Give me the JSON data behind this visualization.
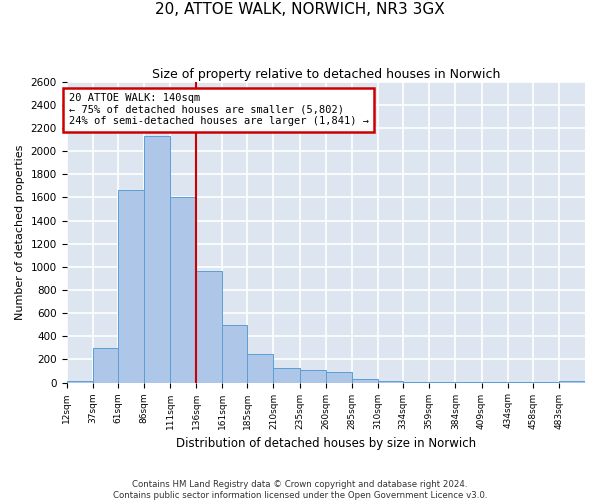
{
  "title": "20, ATTOE WALK, NORWICH, NR3 3GX",
  "subtitle": "Size of property relative to detached houses in Norwich",
  "xlabel": "Distribution of detached houses by size in Norwich",
  "ylabel": "Number of detached properties",
  "footnote1": "Contains HM Land Registry data © Crown copyright and database right 2024.",
  "footnote2": "Contains public sector information licensed under the Open Government Licence v3.0.",
  "bar_color": "#aec6e8",
  "bar_edge_color": "#5a9fd4",
  "bg_color": "#dde6f0",
  "grid_color": "#ffffff",
  "vline_x": 136,
  "vline_color": "#cc0000",
  "annotation_line1": "20 ATTOE WALK: 140sqm",
  "annotation_line2": "← 75% of detached houses are smaller (5,802)",
  "annotation_line3": "24% of semi-detached houses are larger (1,841) →",
  "annotation_box_color": "#cc0000",
  "ylim": [
    0,
    2600
  ],
  "yticks": [
    0,
    200,
    400,
    600,
    800,
    1000,
    1200,
    1400,
    1600,
    1800,
    2000,
    2200,
    2400,
    2600
  ],
  "bin_edges": [
    12,
    37,
    61,
    86,
    111,
    136,
    161,
    185,
    210,
    235,
    260,
    285,
    310,
    334,
    359,
    384,
    409,
    434,
    458,
    483,
    508
  ],
  "bar_heights": [
    10,
    300,
    1660,
    2130,
    1600,
    960,
    500,
    250,
    125,
    110,
    90,
    35,
    10,
    5,
    5,
    5,
    5,
    5,
    5,
    15
  ]
}
